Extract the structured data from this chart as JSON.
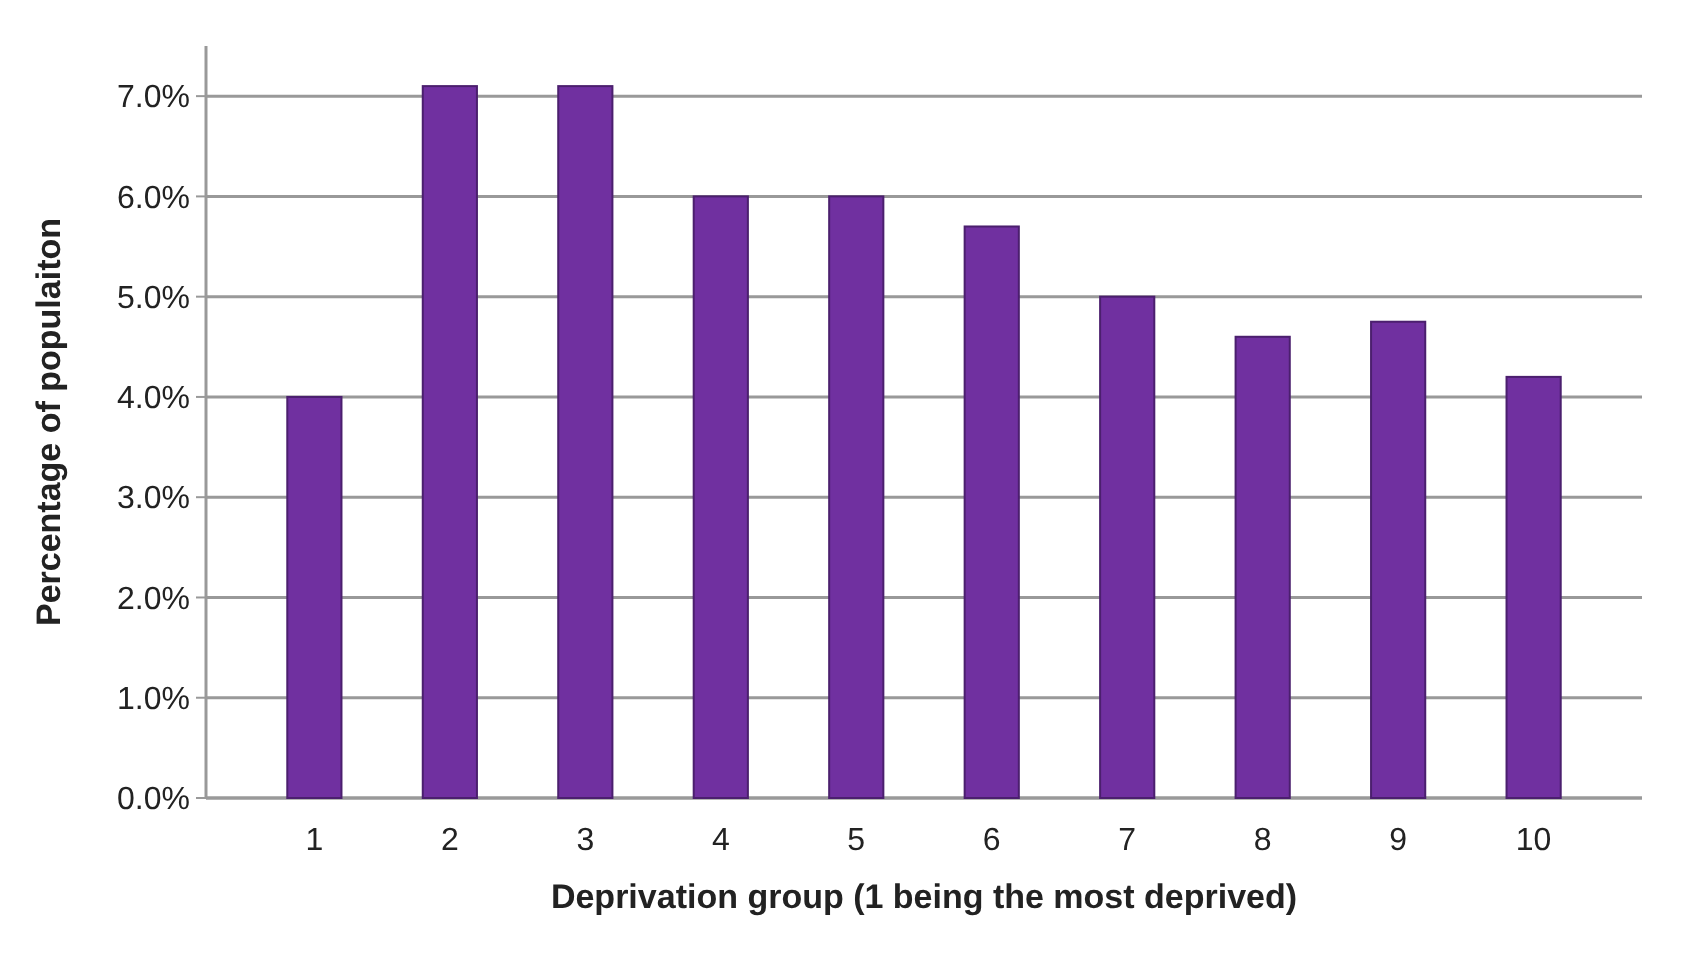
{
  "chart_data": {
    "type": "bar",
    "xlabel": "Deprivation group (1 being the most deprived)",
    "ylabel": "Percentage of populaiton",
    "categories": [
      "1",
      "2",
      "3",
      "4",
      "5",
      "6",
      "7",
      "8",
      "9",
      "10"
    ],
    "values": [
      4.0,
      7.1,
      7.1,
      6.0,
      6.0,
      5.7,
      5.0,
      4.6,
      4.75,
      4.2
    ],
    "color": "#7030a0",
    "ylim": [
      0,
      7.5
    ],
    "yticks": [
      {
        "value": 0,
        "label": "0.0%"
      },
      {
        "value": 1,
        "label": "1.0%"
      },
      {
        "value": 2,
        "label": "2.0%"
      },
      {
        "value": 3,
        "label": "3.0%"
      },
      {
        "value": 4,
        "label": "4.0%"
      },
      {
        "value": 5,
        "label": "5.0%"
      },
      {
        "value": 6,
        "label": "6.0%"
      },
      {
        "value": 7,
        "label": "7.0%"
      }
    ],
    "grid": "y"
  }
}
